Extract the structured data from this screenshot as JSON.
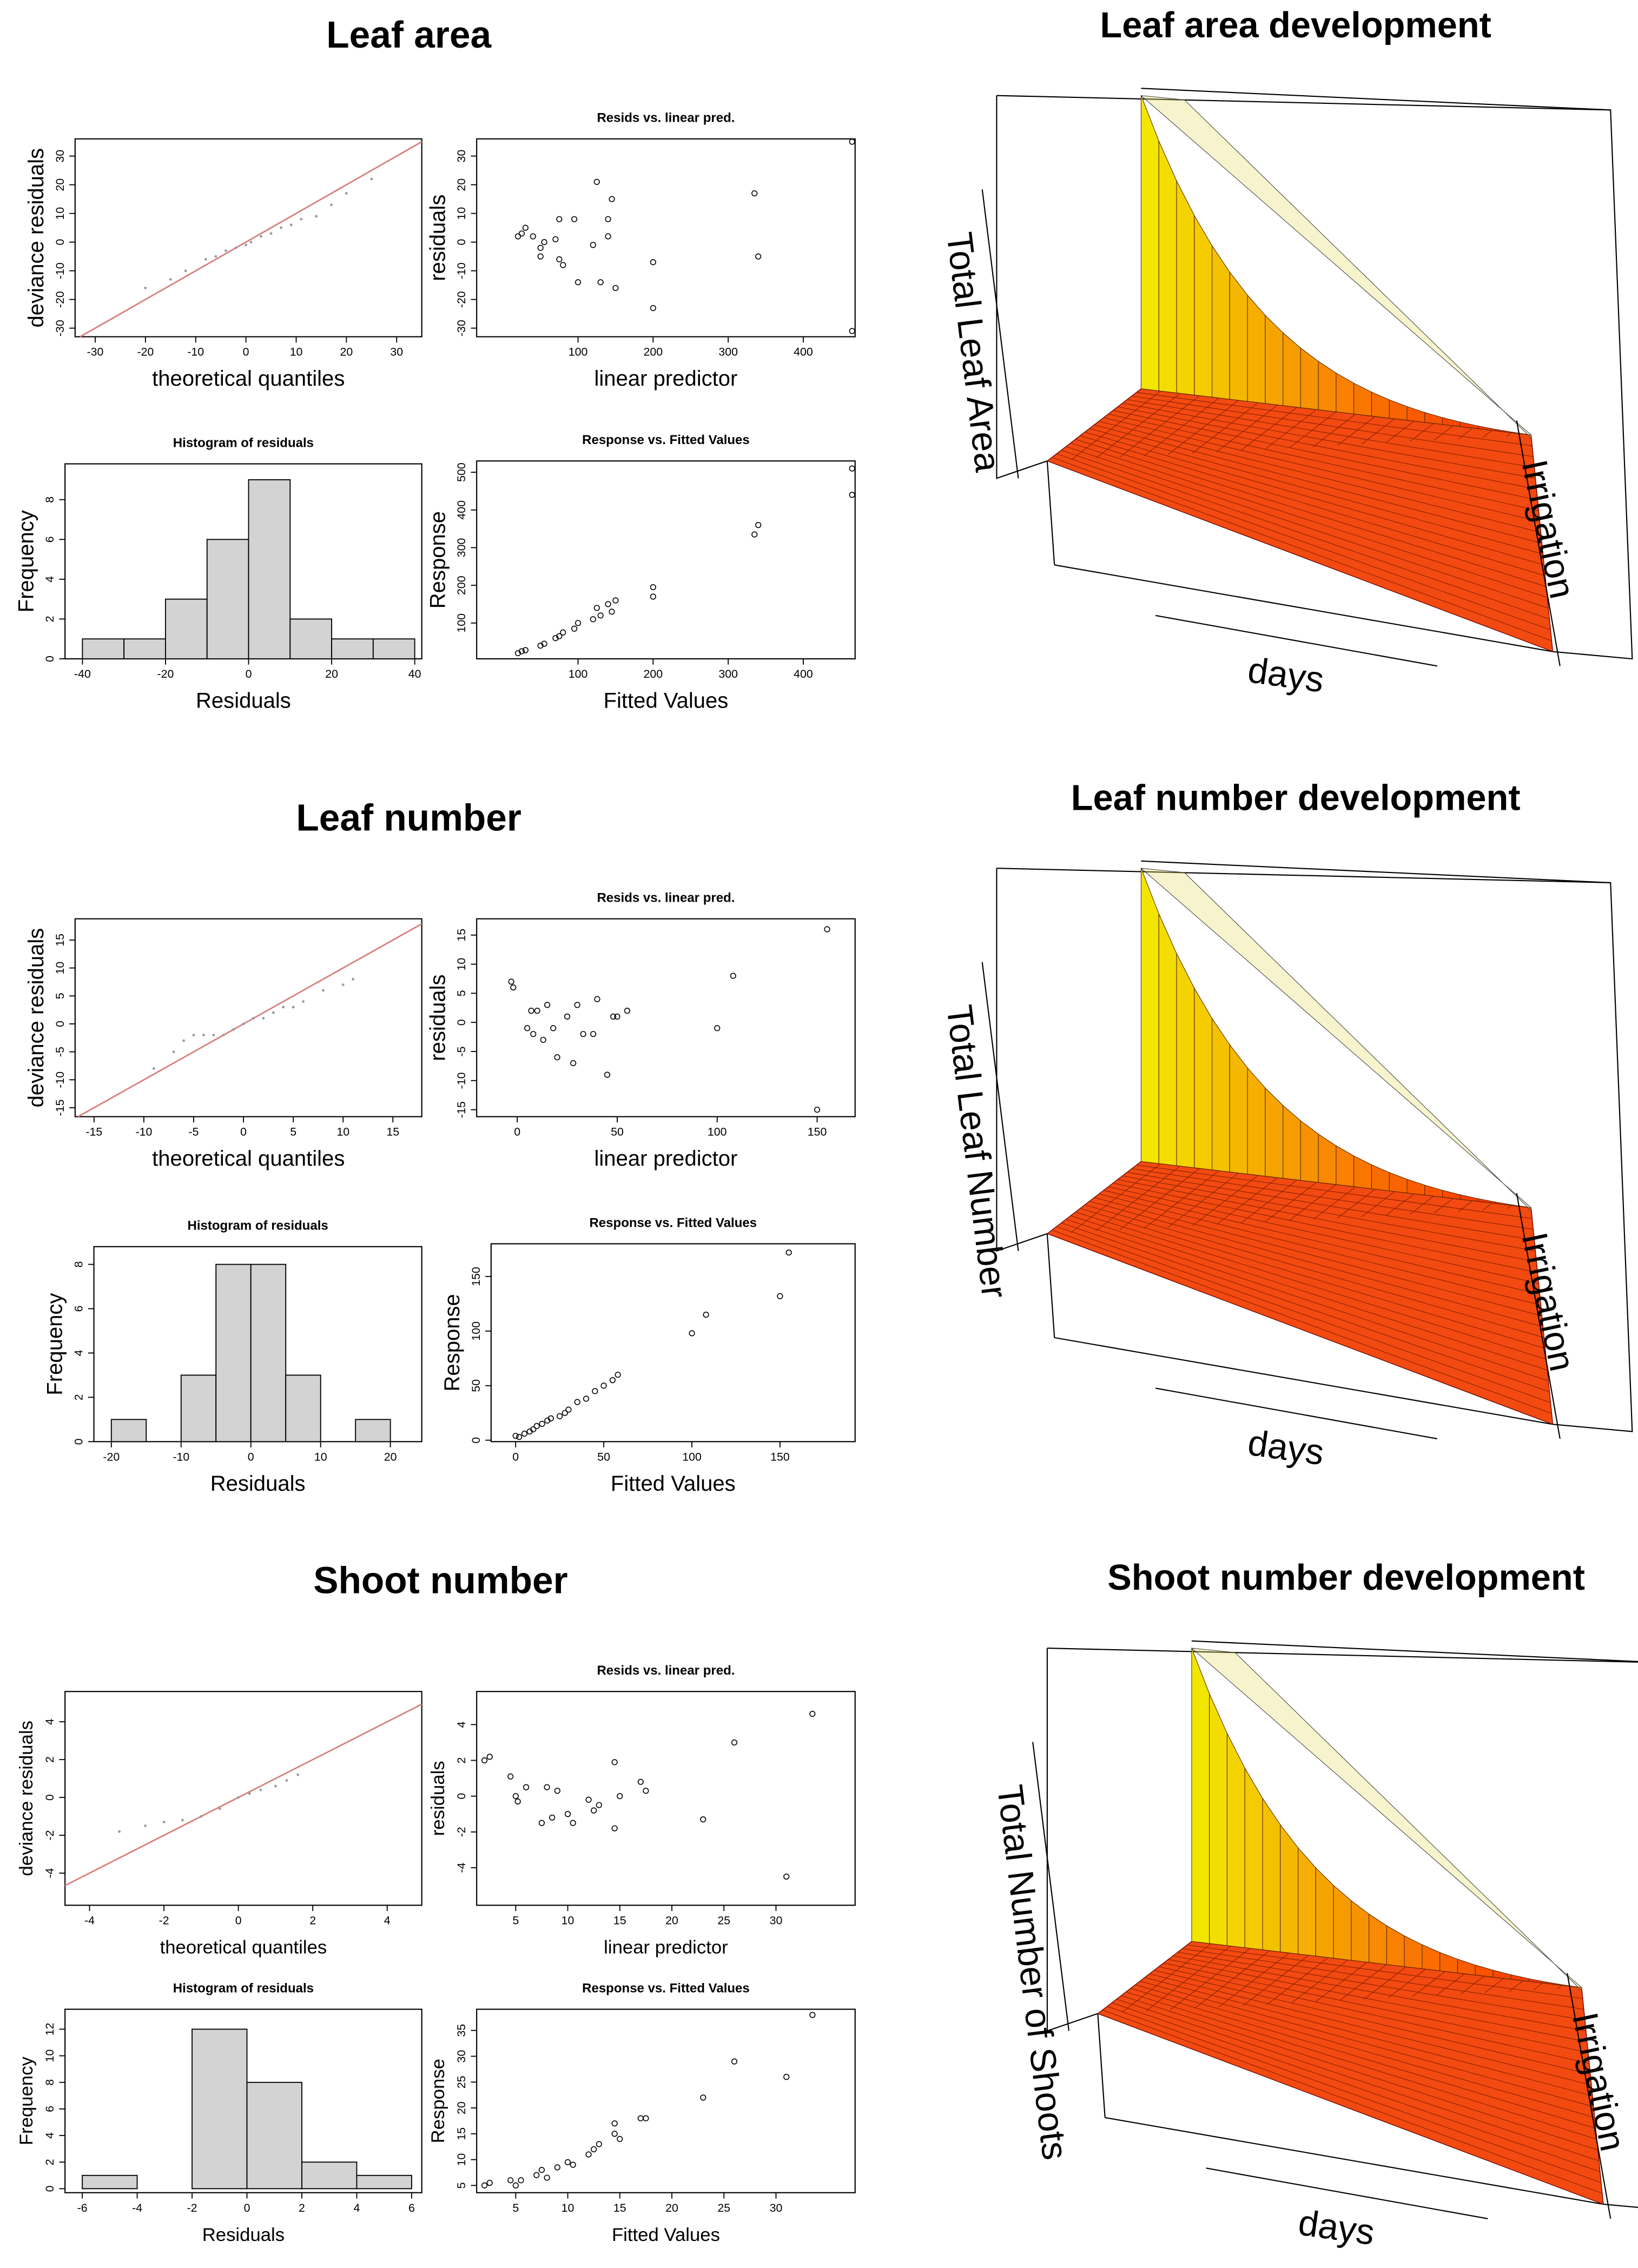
{
  "sections": [
    {
      "title": "Leaf area"
    },
    {
      "title": "Leaf number"
    },
    {
      "title": "Shoot number"
    }
  ],
  "chart_data": [
    {
      "type": "qq",
      "x_label": "theoretical quantiles",
      "y_label": "deviance residuals",
      "x": [
        -20,
        -15,
        -12,
        -8,
        -6,
        -4,
        -2,
        0,
        1,
        3,
        5,
        7,
        9,
        11,
        14,
        17,
        20,
        25
      ],
      "y": [
        -16,
        -13,
        -10,
        -6,
        -5,
        -3,
        -2,
        -1,
        0,
        2,
        3,
        5,
        6,
        8,
        9,
        13,
        17,
        22
      ],
      "xlim": [
        -34,
        35
      ],
      "ylim": [
        -33,
        36
      ],
      "xticks": [
        -30,
        -20,
        -10,
        0,
        10,
        20,
        30
      ],
      "yticks": [
        -30,
        -20,
        -10,
        0,
        10,
        20,
        30
      ],
      "point_color": "#999999",
      "line_color": "#d87a7a"
    },
    {
      "type": "scatter",
      "title": "Resids vs. linear pred.",
      "x_label": "linear predictor",
      "y_label": "residuals",
      "x": [
        20,
        25,
        30,
        40,
        50,
        50,
        55,
        70,
        75,
        75,
        80,
        95,
        100,
        120,
        125,
        130,
        140,
        140,
        145,
        150,
        200,
        200,
        335,
        340,
        465,
        465
      ],
      "y": [
        2,
        3,
        5,
        2,
        -2,
        -5,
        0,
        1,
        8,
        -6,
        -8,
        8,
        -14,
        -1,
        21,
        -14,
        2,
        8,
        15,
        -16,
        -7,
        -23,
        17,
        -5,
        35,
        -31
      ],
      "xlim": [
        -35,
        469
      ],
      "ylim": [
        -33,
        36
      ],
      "xticks": [
        100,
        200,
        300,
        400
      ],
      "yticks": [
        -30,
        -20,
        -10,
        0,
        10,
        20,
        30
      ]
    },
    {
      "type": "histogram",
      "title": "Histogram of residuals",
      "x_label": "Residuals",
      "y_label": "Frequency",
      "bins": [
        -40,
        -30,
        -20,
        -10,
        0,
        10,
        20,
        30,
        40
      ],
      "values": [
        1,
        1,
        3,
        6,
        9,
        2,
        1,
        1
      ],
      "color": "#d3d3d3",
      "xlim": [
        -44.2,
        41.7
      ],
      "ylim": [
        0,
        9.8
      ],
      "xticks": [
        -40,
        -20,
        0,
        20,
        40
      ],
      "yticks": [
        0,
        2,
        4,
        6,
        8
      ]
    },
    {
      "type": "scatter",
      "title": "Response vs. Fitted Values",
      "x_label": "Fitted Values",
      "y_label": "Response",
      "x": [
        20,
        25,
        30,
        50,
        55,
        70,
        75,
        80,
        95,
        100,
        120,
        125,
        130,
        140,
        145,
        150,
        200,
        200,
        335,
        340,
        465,
        465
      ],
      "y": [
        20,
        25,
        28,
        40,
        45,
        60,
        65,
        75,
        85,
        100,
        110,
        140,
        120,
        150,
        130,
        160,
        170,
        195,
        335,
        360,
        440,
        510
      ],
      "xlim": [
        -35,
        469
      ],
      "ylim": [
        5,
        530
      ],
      "xticks": [
        100,
        200,
        300,
        400
      ],
      "yticks": [
        100,
        200,
        300,
        400,
        500
      ]
    },
    {
      "type": "qq",
      "x_label": "theoretical quantiles",
      "y_label": "deviance residuals",
      "x": [
        -9,
        -7,
        -6,
        -5,
        -4,
        -3,
        -2,
        -1,
        0,
        1,
        2,
        3,
        4,
        5,
        6,
        8,
        10,
        11
      ],
      "y": [
        -8,
        -5,
        -3,
        -2,
        -2,
        -2,
        -2,
        -1,
        0,
        1,
        1,
        2,
        3,
        3,
        4,
        6,
        7,
        8
      ],
      "xlim": [
        -16.9,
        17.9
      ],
      "ylim": [
        -16.6,
        18.8
      ],
      "xticks": [
        -15,
        -10,
        -5,
        0,
        5,
        10,
        15
      ],
      "yticks": [
        -15,
        -10,
        -5,
        0,
        5,
        10,
        15
      ],
      "point_color": "#999999",
      "line_color": "#d87a7a"
    },
    {
      "type": "scatter",
      "title": "Resids vs. linear pred.",
      "x_label": "linear predictor",
      "y_label": "residuals",
      "x": [
        -3,
        -2,
        5,
        7,
        8,
        10,
        13,
        15,
        18,
        20,
        25,
        28,
        30,
        33,
        38,
        40,
        45,
        48,
        50,
        55,
        100,
        108,
        150,
        155
      ],
      "y": [
        7,
        6,
        -1,
        2,
        -2,
        2,
        -3,
        3,
        -1,
        -6,
        1,
        -7,
        3,
        -2,
        -2,
        4,
        -9,
        1,
        1,
        2,
        -1,
        8,
        -15,
        16
      ],
      "xlim": [
        -20.3,
        169
      ],
      "ylim": [
        -16.2,
        17.8
      ],
      "xticks": [
        0,
        50,
        100,
        150
      ],
      "yticks": [
        -15,
        -10,
        -5,
        0,
        5,
        10,
        15
      ]
    },
    {
      "type": "histogram",
      "title": "Histogram of residuals",
      "x_label": "Residuals",
      "y_label": "Frequency",
      "bins": [
        -20,
        -15,
        -10,
        -5,
        0,
        5,
        10,
        15,
        20
      ],
      "values": [
        1,
        0,
        3,
        8,
        8,
        3,
        0,
        1
      ],
      "color": "#d3d3d3",
      "xlim": [
        -22.5,
        24.5
      ],
      "ylim": [
        0,
        8.8
      ],
      "xticks": [
        -20,
        -10,
        0,
        10,
        20
      ],
      "yticks": [
        0,
        2,
        4,
        6,
        8
      ]
    },
    {
      "type": "scatter",
      "title": "Response vs. Fitted Values",
      "x_label": "Fitted Values",
      "y_label": "Response",
      "x": [
        0,
        2,
        5,
        8,
        10,
        12,
        15,
        18,
        20,
        25,
        28,
        30,
        35,
        40,
        45,
        50,
        55,
        58,
        100,
        108,
        150,
        155
      ],
      "y": [
        4,
        3,
        6,
        8,
        10,
        13,
        15,
        18,
        20,
        22,
        25,
        28,
        35,
        38,
        45,
        50,
        55,
        60,
        98,
        115,
        132,
        172
      ],
      "xlim": [
        -13.9,
        192.6
      ],
      "ylim": [
        -1.3,
        180
      ],
      "xticks": [
        0,
        50,
        100,
        150
      ],
      "yticks": [
        0,
        50,
        100,
        150
      ]
    },
    {
      "type": "qq",
      "x_label": "theoretical quantiles",
      "y_label": "deviance residuals",
      "x": [
        -3.2,
        -2.5,
        -2,
        -1.5,
        -1,
        -0.5,
        0,
        0.3,
        0.6,
        1,
        1.3,
        1.6
      ],
      "y": [
        -1.8,
        -1.5,
        -1.3,
        -1.2,
        -1,
        -0.6,
        0,
        0.2,
        0.4,
        0.6,
        0.9,
        1.2
      ],
      "xlim": [
        -4.66,
        4.93
      ],
      "ylim": [
        -5.7,
        5.6
      ],
      "xticks": [
        -4,
        -2,
        0,
        2,
        4
      ],
      "yticks": [
        -4,
        -2,
        0,
        2,
        4
      ],
      "point_color": "#999999",
      "line_color": "#d87a7a"
    },
    {
      "type": "scatter",
      "title": "Resids vs. linear pred.",
      "x_label": "linear predictor",
      "y_label": "residuals",
      "x": [
        2,
        2.5,
        4.5,
        5,
        5.2,
        6,
        7.5,
        8,
        8.5,
        9,
        10,
        10.5,
        12,
        12.5,
        13,
        14.5,
        14.5,
        15,
        17,
        17.5,
        23,
        26,
        31,
        33.5
      ],
      "y": [
        2,
        2.2,
        1.1,
        0,
        -0.3,
        0.5,
        -1.5,
        0.5,
        -1.2,
        0.3,
        -1,
        -1.5,
        -0.2,
        -0.8,
        -0.5,
        1.9,
        -1.8,
        0,
        0.8,
        0.3,
        -1.3,
        3,
        -4.5,
        4.6
      ],
      "xlim": [
        1.25,
        37.6
      ],
      "ylim": [
        -6.1,
        5.85
      ],
      "xticks": [
        5,
        10,
        15,
        20,
        25,
        30
      ],
      "yticks": [
        -4,
        -2,
        0,
        2,
        4
      ]
    },
    {
      "type": "histogram",
      "title": "Histogram of residuals",
      "x_label": "Residuals",
      "y_label": "Frequency",
      "bins": [
        -6,
        -4,
        -2,
        0,
        2,
        4,
        6
      ],
      "values": [
        1,
        0,
        12,
        8,
        2,
        1
      ],
      "color": "#d3d3d3",
      "xlim": [
        -6.63,
        6.37
      ],
      "ylim": [
        -0.3,
        13.5
      ],
      "xticks": [
        -6,
        -4,
        -2,
        0,
        2,
        4,
        6
      ],
      "yticks": [
        0,
        2,
        4,
        6,
        8,
        10,
        12
      ]
    },
    {
      "type": "scatter",
      "title": "Response vs. Fitted Values",
      "x_label": "Fitted Values",
      "y_label": "Response",
      "x": [
        2,
        2.5,
        4.5,
        5,
        5.5,
        7,
        7.5,
        8,
        9,
        10,
        10.5,
        12,
        12.5,
        13,
        14.5,
        14.5,
        15,
        17,
        17.5,
        23,
        26,
        31,
        33.5
      ],
      "y": [
        5,
        5.5,
        6,
        5,
        6,
        7,
        8,
        6.5,
        8.5,
        9.5,
        9,
        11,
        12,
        13,
        15,
        17,
        14,
        18,
        18,
        22,
        29,
        26,
        38
      ],
      "xlim": [
        1.25,
        37.6
      ],
      "ylim": [
        3.6,
        39.1
      ],
      "xticks": [
        5,
        10,
        15,
        20,
        25,
        30
      ],
      "yticks": [
        5,
        10,
        15,
        20,
        25,
        30,
        35
      ]
    },
    {
      "type": "surface",
      "title": "Leaf area development",
      "z_label": "Total Leaf Area",
      "x_label": "days",
      "y_label": "Irrigation",
      "colors": [
        "#f2e600",
        "#ff1a00"
      ],
      "floor_color": "#f24a10"
    },
    {
      "type": "surface",
      "title": "Leaf number development",
      "z_label": "Total Leaf Number",
      "x_label": "days",
      "y_label": "Irrigation",
      "colors": [
        "#f2e600",
        "#ff1a00"
      ],
      "floor_color": "#f24a10"
    },
    {
      "type": "surface",
      "title": "Shoot number development",
      "z_label": "Total Number of Shoots",
      "x_label": "days",
      "y_label": "Irrigation",
      "colors": [
        "#f2e600",
        "#ff1a00"
      ],
      "floor_color": "#f24a10"
    }
  ]
}
